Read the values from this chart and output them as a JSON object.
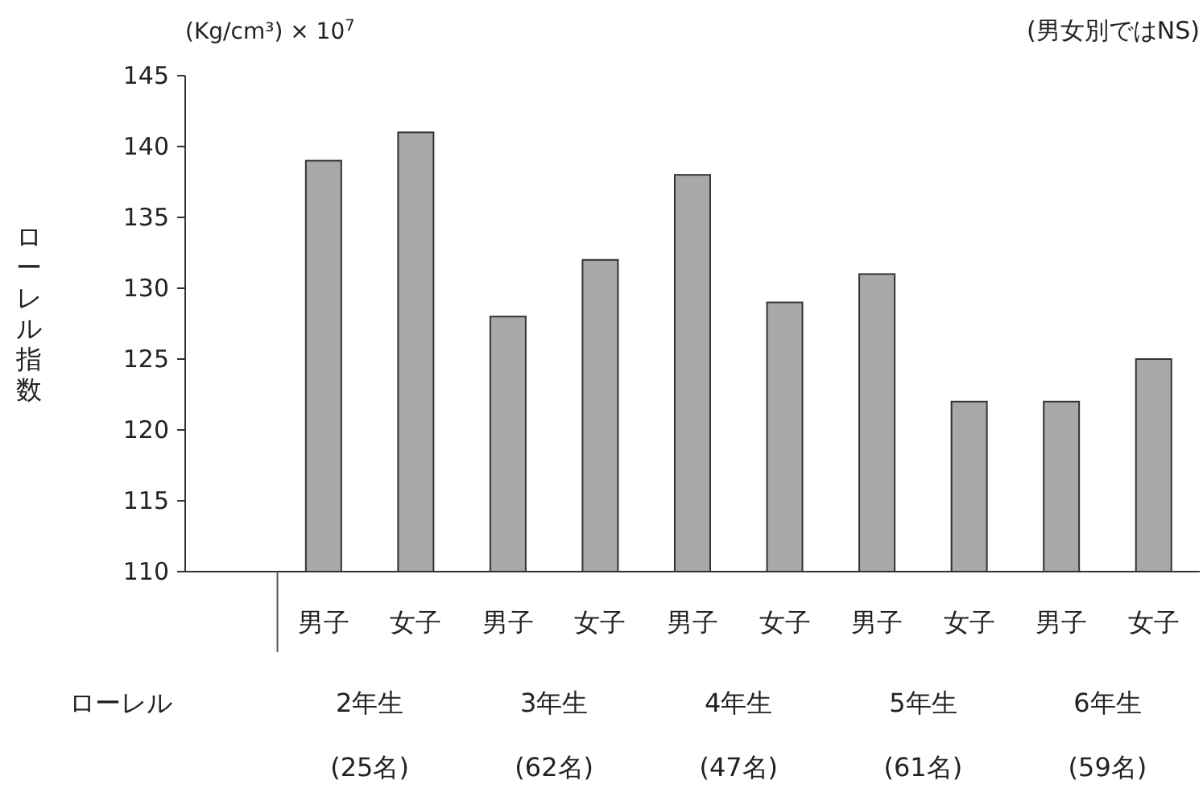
{
  "chart_data": {
    "type": "bar",
    "subtitle": "(Kg/cm³) × 10$^{7}$",
    "ylabel": "ローレル指数",
    "categories": [
      null,
      "男子",
      "女子",
      "男子",
      "女子",
      "男子",
      "女子",
      "男子",
      "女子",
      "男子",
      "女子"
    ],
    "values": [
      null,
      139,
      141,
      128,
      132,
      138,
      129,
      131,
      122,
      122,
      125
    ],
    "color": "#a8a8a8",
    "ylim": [
      110,
      145
    ],
    "yticks": [
      110,
      115,
      120,
      125,
      130,
      135,
      140,
      145
    ],
    "annotations": [
      "(男女別ではNS)",
      "ローレル",
      "2年生",
      "3年生",
      "4年生",
      "5年生",
      "6年生",
      "(25名)",
      "(62名)",
      "(47名)",
      "(61名)",
      "(59名)"
    ]
  }
}
